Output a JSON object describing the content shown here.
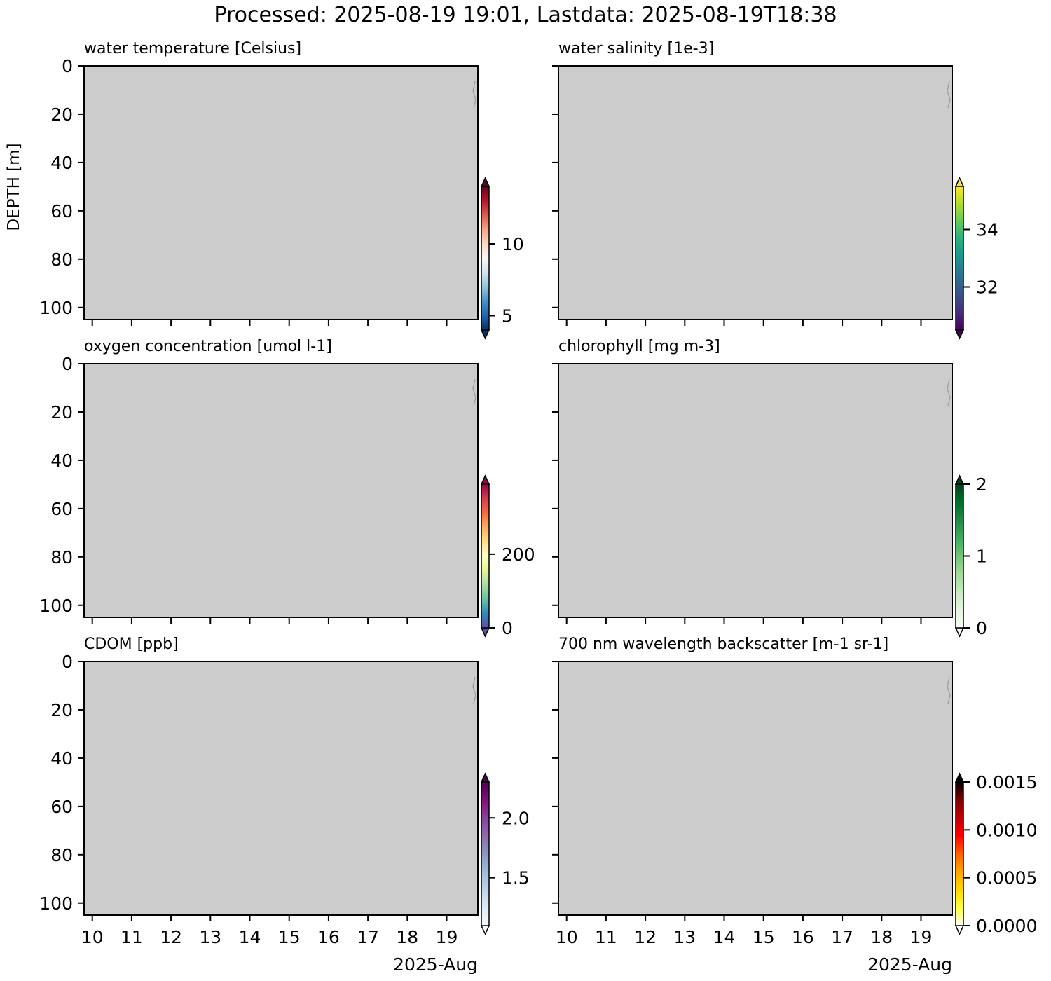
{
  "figure": {
    "title": "Processed: 2025-08-19 19:01, Lastdata: 2025-08-19T18:38",
    "ylabel": "DEPTH [m]",
    "x_axis_label": "2025-Aug"
  },
  "chart_data": [
    {
      "type": "heatmap",
      "title": "water temperature [Celsius]",
      "ylabel": "DEPTH [m]",
      "x_ticks": [
        "10",
        "11",
        "12",
        "13",
        "14",
        "15",
        "16",
        "17",
        "18",
        "19"
      ],
      "y_ticks": [
        "0",
        "20",
        "40",
        "60",
        "80",
        "100"
      ],
      "xlim": [
        "2025-08-09T19:00",
        "2025-08-19T19:00"
      ],
      "ylim": [
        105,
        0
      ],
      "colorbar": {
        "colormap": "RdBu_r",
        "ticks": [
          "5",
          "10"
        ],
        "tick_values": [
          5,
          10
        ],
        "range": [
          4,
          14
        ],
        "colors": [
          "#053061",
          "#2166ac",
          "#4393c3",
          "#92c5de",
          "#d1e5f0",
          "#f7f7f7",
          "#fddbc7",
          "#f4a582",
          "#d6604d",
          "#b2182b",
          "#67001f"
        ],
        "extend": "both"
      },
      "background_color": "#cccccc"
    },
    {
      "type": "heatmap",
      "title": "water salinity [1e-3]",
      "x_ticks": [
        "10",
        "11",
        "12",
        "13",
        "14",
        "15",
        "16",
        "17",
        "18",
        "19"
      ],
      "y_ticks": [
        "0",
        "20",
        "40",
        "60",
        "80",
        "100"
      ],
      "xlim": [
        "2025-08-09T19:00",
        "2025-08-19T19:00"
      ],
      "ylim": [
        105,
        0
      ],
      "colorbar": {
        "colormap": "viridis",
        "ticks": [
          "32",
          "34"
        ],
        "tick_values": [
          32,
          34
        ],
        "range": [
          30.5,
          35.5
        ],
        "colors": [
          "#440154",
          "#482878",
          "#3e4a89",
          "#31688e",
          "#26828e",
          "#1f9e89",
          "#35b779",
          "#6ece58",
          "#b5de2b",
          "#fde725"
        ],
        "extend": "both"
      },
      "background_color": "#cccccc"
    },
    {
      "type": "heatmap",
      "title": "oxygen concentration [umol l-1]",
      "ylabel": "DEPTH [m]",
      "x_ticks": [
        "10",
        "11",
        "12",
        "13",
        "14",
        "15",
        "16",
        "17",
        "18",
        "19"
      ],
      "y_ticks": [
        "0",
        "20",
        "40",
        "60",
        "80",
        "100"
      ],
      "xlim": [
        "2025-08-09T19:00",
        "2025-08-19T19:00"
      ],
      "ylim": [
        105,
        0
      ],
      "colorbar": {
        "colormap": "Spectral_r",
        "ticks": [
          "0",
          "200"
        ],
        "tick_values": [
          0,
          200
        ],
        "range": [
          0,
          390
        ],
        "colors": [
          "#5e4fa2",
          "#3288bd",
          "#66c2a5",
          "#abdda4",
          "#e6f598",
          "#ffffbf",
          "#fee08b",
          "#fdae61",
          "#f46d43",
          "#d53e4f",
          "#9e0142"
        ],
        "extend": "both"
      },
      "background_color": "#cccccc"
    },
    {
      "type": "heatmap",
      "title": "chlorophyll [mg m-3]",
      "x_ticks": [
        "10",
        "11",
        "12",
        "13",
        "14",
        "15",
        "16",
        "17",
        "18",
        "19"
      ],
      "y_ticks": [
        "0",
        "20",
        "40",
        "60",
        "80",
        "100"
      ],
      "xlim": [
        "2025-08-09T19:00",
        "2025-08-19T19:00"
      ],
      "ylim": [
        105,
        0
      ],
      "colorbar": {
        "colormap": "Greens",
        "ticks": [
          "0",
          "1",
          "2"
        ],
        "tick_values": [
          0,
          1,
          2
        ],
        "range": [
          0,
          2
        ],
        "colors": [
          "#f7fcf5",
          "#e5f5e0",
          "#c7e9c0",
          "#a1d99b",
          "#74c476",
          "#41ab5d",
          "#238b45",
          "#006d2c",
          "#00441b"
        ],
        "extend": "both"
      },
      "background_color": "#cccccc"
    },
    {
      "type": "heatmap",
      "title": "CDOM [ppb]",
      "ylabel": "DEPTH [m]",
      "x_ticks": [
        "10",
        "11",
        "12",
        "13",
        "14",
        "15",
        "16",
        "17",
        "18",
        "19"
      ],
      "y_ticks": [
        "0",
        "20",
        "40",
        "60",
        "80",
        "100"
      ],
      "xlim": [
        "2025-08-09T19:00",
        "2025-08-19T19:00"
      ],
      "ylim": [
        105,
        0
      ],
      "colorbar": {
        "colormap": "BuPu",
        "ticks": [
          "1.5",
          "2.0"
        ],
        "tick_values": [
          1.5,
          2.0
        ],
        "range": [
          1.1,
          2.3
        ],
        "colors": [
          "#f7fcfd",
          "#e0ecf4",
          "#bfd3e6",
          "#9ebcda",
          "#8c96c6",
          "#8c6bb1",
          "#88419d",
          "#810f7c",
          "#4d004b"
        ],
        "extend": "both"
      },
      "background_color": "#cccccc"
    },
    {
      "type": "heatmap",
      "title": "700 nm wavelength backscatter [m-1 sr-1]",
      "x_ticks": [
        "10",
        "11",
        "12",
        "13",
        "14",
        "15",
        "16",
        "17",
        "18",
        "19"
      ],
      "y_ticks": [
        "0",
        "20",
        "40",
        "60",
        "80",
        "100"
      ],
      "xlim": [
        "2025-08-09T19:00",
        "2025-08-19T19:00"
      ],
      "ylim": [
        105,
        0
      ],
      "colorbar": {
        "colormap": "hot_r",
        "ticks": [
          "0.0000",
          "0.0005",
          "0.0010",
          "0.0015"
        ],
        "tick_values": [
          0,
          0.0005,
          0.001,
          0.0015
        ],
        "range": [
          0,
          0.0015
        ],
        "colors": [
          "#ffffff",
          "#ffff40",
          "#ffd700",
          "#ffa500",
          "#ff6000",
          "#ff0000",
          "#c00000",
          "#800000",
          "#000000"
        ],
        "extend": "both"
      },
      "background_color": "#cccccc"
    }
  ]
}
